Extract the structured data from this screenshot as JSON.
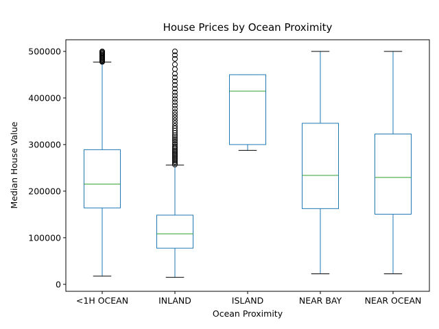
{
  "chart_data": {
    "type": "box",
    "title": "House Prices by Ocean Proximity",
    "xlabel": "Ocean Proximity",
    "ylabel": "Median House Value",
    "ylim": [
      -15000,
      525000
    ],
    "yticks": [
      0,
      100000,
      200000,
      300000,
      400000,
      500000
    ],
    "grid": false,
    "colors": {
      "box": "#1f77b4",
      "median": "#2ca02c",
      "whisker_cap": "#000000",
      "outlier": "#000000"
    },
    "categories": [
      "<1H OCEAN",
      "INLAND",
      "ISLAND",
      "NEAR BAY",
      "NEAR OCEAN"
    ],
    "boxes": [
      {
        "category": "<1H OCEAN",
        "whisker_low": 17500,
        "q1": 164000,
        "median": 215000,
        "q3": 289000,
        "whisker_high": 477000,
        "outliers": [
          477500,
          479000,
          481000,
          483000,
          485000,
          487000,
          489000,
          491000,
          493000,
          495000,
          497000,
          499000,
          500001
        ]
      },
      {
        "category": "INLAND",
        "whisker_low": 15000,
        "q1": 77500,
        "median": 108500,
        "q3": 148500,
        "whisker_high": 256000,
        "outliers": [
          257000,
          260000,
          263000,
          266000,
          269000,
          272000,
          275000,
          278000,
          281000,
          284000,
          287000,
          290000,
          293000,
          296000,
          300000,
          304000,
          308000,
          312000,
          316000,
          320000,
          325000,
          330000,
          335000,
          340000,
          346000,
          352000,
          358000,
          364000,
          370000,
          377000,
          384000,
          391000,
          398000,
          405000,
          412000,
          420000,
          428000,
          436000,
          444000,
          452000,
          462000,
          472000,
          484000,
          492000,
          500001
        ]
      },
      {
        "category": "ISLAND",
        "whisker_low": 287500,
        "q1": 300000,
        "median": 414700,
        "q3": 450000,
        "whisker_high": 450000,
        "outliers": []
      },
      {
        "category": "NEAR BAY",
        "whisker_low": 22500,
        "q1": 162500,
        "median": 233800,
        "q3": 345700,
        "whisker_high": 500001,
        "outliers": []
      },
      {
        "category": "NEAR OCEAN",
        "whisker_low": 22500,
        "q1": 150500,
        "median": 229500,
        "q3": 322700,
        "whisker_high": 500001,
        "outliers": []
      }
    ]
  }
}
